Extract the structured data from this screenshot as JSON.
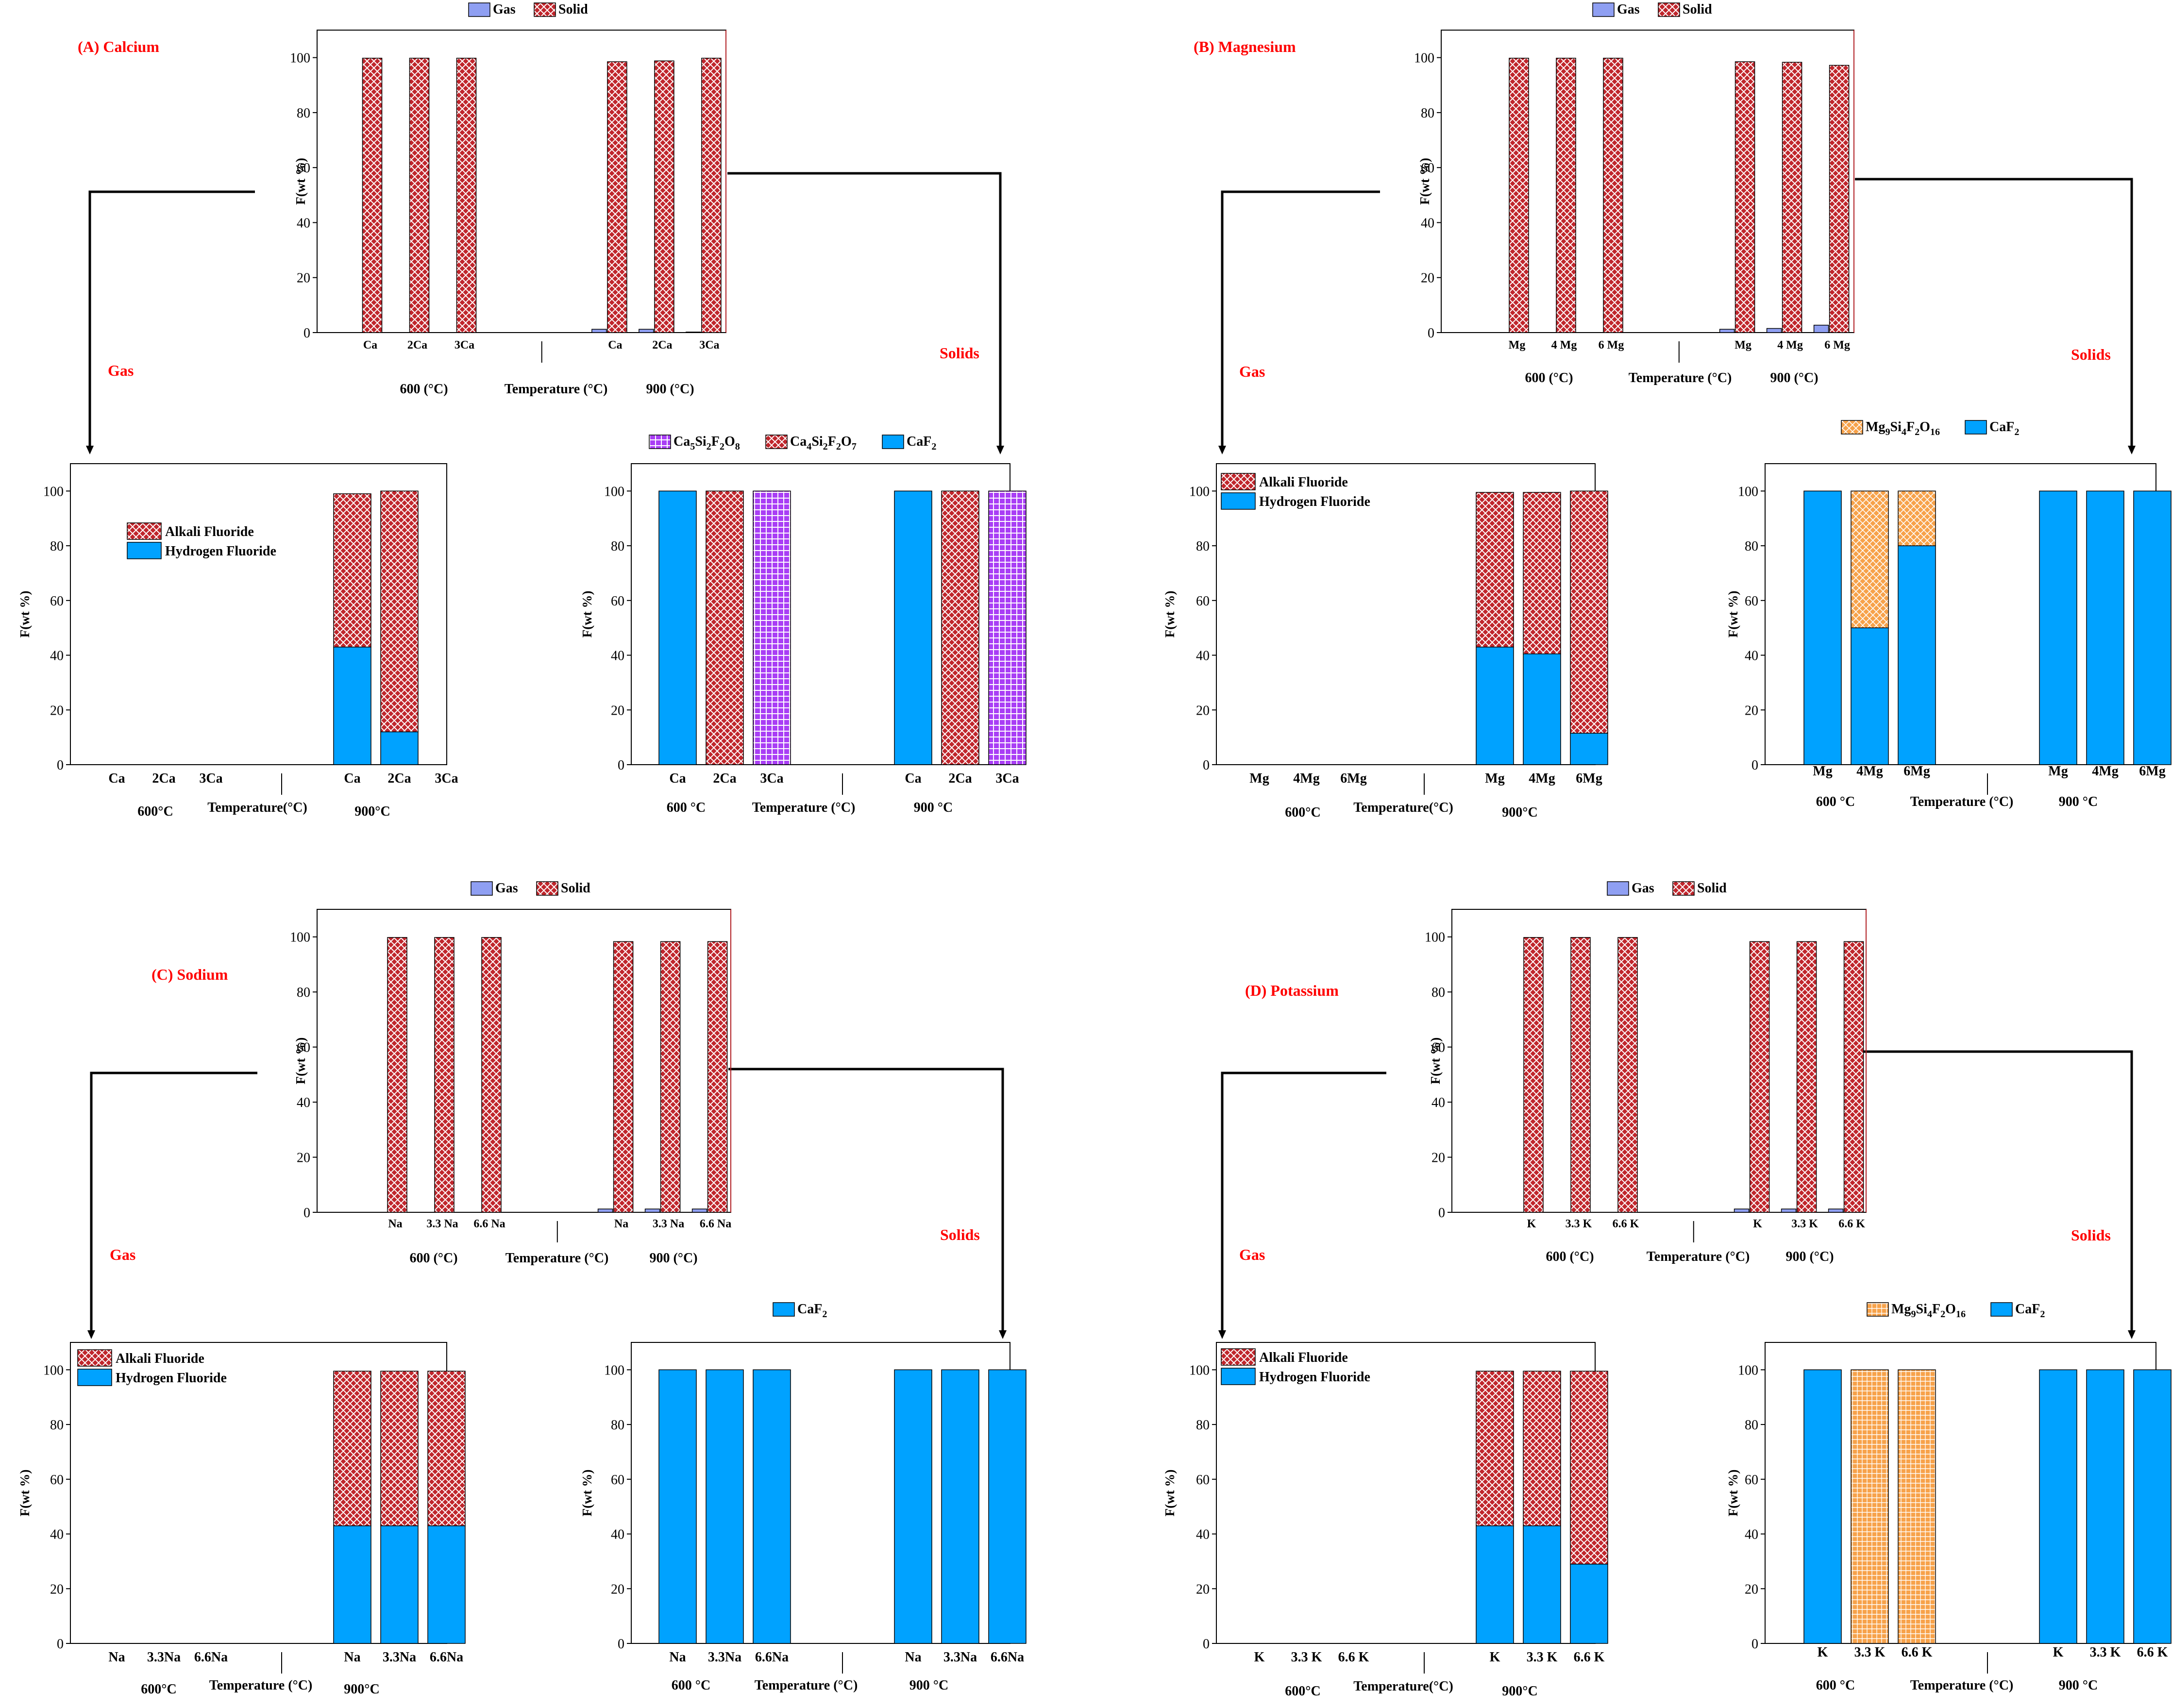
{
  "colors": {
    "gas": "#8f9ff2",
    "solid": "#c0262c",
    "solid_hatch": "#ffffff",
    "caf2": "#00a2ff",
    "purple": "#a93ef5",
    "orange": "#f7a24a",
    "panel_label": "#ff0000",
    "section_label": "#ff0000"
  },
  "panels": [
    {
      "title": "(A) Calcium",
      "gas_label": "Gas",
      "solids_label": "Solids"
    },
    {
      "title": "(B) Magnesium",
      "gas_label": "Gas",
      "solids_label": "Solids"
    },
    {
      "title": "(C) Sodium",
      "gas_label": "Gas",
      "solids_label": "Solids"
    },
    {
      "title": "(D) Potassium",
      "gas_label": "Gas",
      "solids_label": "Solids"
    }
  ],
  "chart_data": [
    {
      "type": "bar",
      "panel": "A",
      "role": "overview",
      "ylabel": "F(wt %)",
      "xlabel": "Temperature (°C)",
      "groups": [
        "600 (°C)",
        "900 (°C)"
      ],
      "categories": [
        "Ca",
        "2Ca",
        "3Ca",
        "Ca",
        "2Ca",
        "3Ca"
      ],
      "ylim": [
        0,
        110
      ],
      "yticks": [
        0,
        20,
        40,
        60,
        80,
        100
      ],
      "legend": [
        "Gas",
        "Solid"
      ],
      "series": [
        {
          "name": "Gas",
          "values": [
            0,
            0,
            0,
            1.2,
            1.2,
            0.2
          ]
        },
        {
          "name": "Solid",
          "values": [
            99.8,
            99.8,
            99.8,
            98.5,
            98.8,
            99.8
          ]
        }
      ]
    },
    {
      "type": "bar",
      "panel": "A",
      "role": "gas",
      "stacked": true,
      "ylabel": "F(wt %)",
      "xlabel": "Temperature(°C)",
      "groups": [
        "600°C",
        "900°C"
      ],
      "categories": [
        "Ca",
        "2Ca",
        "3Ca",
        "Ca",
        "2Ca",
        "3Ca"
      ],
      "ylim": [
        0,
        110
      ],
      "yticks": [
        0,
        20,
        40,
        60,
        80,
        100
      ],
      "legend": [
        "Alkali Fluoride",
        "Hydrogen Fluoride"
      ],
      "series": [
        {
          "name": "Hydrogen Fluoride",
          "values": [
            0,
            0,
            0,
            43,
            12,
            0
          ]
        },
        {
          "name": "Alkali Fluoride",
          "values": [
            0,
            0,
            0,
            56,
            88,
            0
          ]
        }
      ]
    },
    {
      "type": "bar",
      "panel": "A",
      "role": "solids",
      "ylabel": "F(wt %)",
      "xlabel": "Temperature (°C)",
      "groups": [
        "600 °C",
        "900 °C"
      ],
      "categories": [
        "Ca",
        "2Ca",
        "3Ca",
        "Ca",
        "2Ca",
        "3Ca"
      ],
      "ylim": [
        0,
        110
      ],
      "yticks": [
        0,
        20,
        40,
        60,
        80,
        100
      ],
      "legend": [
        "Ca5Si2F2O8",
        "Ca4Si2F2O7",
        "CaF2"
      ],
      "series": [
        {
          "name": "CaF2",
          "values": [
            100,
            0,
            0,
            100,
            0,
            0
          ]
        },
        {
          "name": "Ca4Si2F2O7",
          "values": [
            0,
            100,
            0,
            0,
            100,
            0
          ]
        },
        {
          "name": "Ca5Si2F2O8",
          "values": [
            0,
            0,
            100,
            0,
            0,
            100
          ]
        }
      ]
    },
    {
      "type": "bar",
      "panel": "B",
      "role": "overview",
      "ylabel": "F(wt %)",
      "xlabel": "Temperature (°C)",
      "groups": [
        "600 (°C)",
        "900 (°C)"
      ],
      "categories": [
        "Mg",
        "4 Mg",
        "6 Mg",
        "Mg",
        "4 Mg",
        "6 Mg"
      ],
      "ylim": [
        0,
        110
      ],
      "yticks": [
        0,
        20,
        40,
        60,
        80,
        100
      ],
      "legend": [
        "Gas",
        "Solid"
      ],
      "series": [
        {
          "name": "Gas",
          "values": [
            0,
            0,
            0,
            1.2,
            1.5,
            2.7
          ]
        },
        {
          "name": "Solid",
          "values": [
            99.8,
            99.8,
            99.8,
            98.5,
            98.3,
            97.2
          ]
        }
      ]
    },
    {
      "type": "bar",
      "panel": "B",
      "role": "gas",
      "stacked": true,
      "ylabel": "F(wt %)",
      "xlabel": "Temperature(°C)",
      "groups": [
        "600°C",
        "900°C"
      ],
      "categories": [
        "Mg",
        "4Mg",
        "6Mg",
        "Mg",
        "4Mg",
        "6Mg"
      ],
      "ylim": [
        0,
        110
      ],
      "yticks": [
        0,
        20,
        40,
        60,
        80,
        100
      ],
      "legend": [
        "Alkali Fluoride",
        "Hydrogen Fluoride"
      ],
      "series": [
        {
          "name": "Hydrogen Fluoride",
          "values": [
            0,
            0,
            0,
            43,
            40.5,
            11.5
          ]
        },
        {
          "name": "Alkali Fluoride",
          "values": [
            0,
            0,
            0,
            56.5,
            59,
            88.5
          ]
        }
      ]
    },
    {
      "type": "bar",
      "panel": "B",
      "role": "solids",
      "ylabel": "F(wt %)",
      "xlabel": "Temperature (°C)",
      "groups": [
        "600 °C",
        "900 °C"
      ],
      "categories": [
        "Mg",
        "4Mg",
        "6Mg",
        "Mg",
        "4Mg",
        "6Mg"
      ],
      "ylim": [
        0,
        110
      ],
      "yticks": [
        0,
        20,
        40,
        60,
        80,
        100
      ],
      "legend": [
        "Mg9Si4F2O16",
        "CaF2"
      ],
      "series": [
        {
          "name": "CaF2",
          "values": [
            100,
            50,
            80,
            100,
            100,
            100
          ]
        },
        {
          "name": "Mg9Si4F2O16",
          "values": [
            0,
            50,
            20,
            0,
            0,
            0
          ]
        }
      ]
    },
    {
      "type": "bar",
      "panel": "C",
      "role": "overview",
      "ylabel": "F(wt %)",
      "xlabel": "Temperature (°C)",
      "groups": [
        "600 (°C)",
        "900 (°C)"
      ],
      "categories": [
        "Na",
        "3.3 Na",
        "6.6 Na",
        "Na",
        "3.3 Na",
        "6.6 Na"
      ],
      "ylim": [
        0,
        110
      ],
      "yticks": [
        0,
        20,
        40,
        60,
        80,
        100
      ],
      "legend": [
        "Gas",
        "Solid"
      ],
      "series": [
        {
          "name": "Gas",
          "values": [
            0,
            0,
            0,
            1.2,
            1.2,
            1.2
          ]
        },
        {
          "name": "Solid",
          "values": [
            99.8,
            99.8,
            99.8,
            98.3,
            98.3,
            98.3
          ]
        }
      ]
    },
    {
      "type": "bar",
      "panel": "C",
      "role": "gas",
      "stacked": true,
      "ylabel": "F(wt %)",
      "xlabel": "Temperature (°C)",
      "groups": [
        "600°C",
        "900°C"
      ],
      "categories": [
        "Na",
        "3.3Na",
        "6.6Na",
        "Na",
        "3.3Na",
        "6.6Na"
      ],
      "ylim": [
        0,
        110
      ],
      "yticks": [
        0,
        20,
        40,
        60,
        80,
        100
      ],
      "legend": [
        "Alkali Fluoride",
        "Hydrogen Fluoride"
      ],
      "series": [
        {
          "name": "Hydrogen Fluoride",
          "values": [
            0,
            0,
            0,
            43,
            43,
            43
          ]
        },
        {
          "name": "Alkali Fluoride",
          "values": [
            0,
            0,
            0,
            56.5,
            56.5,
            56.5
          ]
        }
      ]
    },
    {
      "type": "bar",
      "panel": "C",
      "role": "solids",
      "ylabel": "F(wt %)",
      "xlabel": "Temperature (°C)",
      "groups": [
        "600 °C",
        "900 °C"
      ],
      "categories": [
        "Na",
        "3.3Na",
        "6.6Na",
        "Na",
        "3.3Na",
        "6.6Na"
      ],
      "ylim": [
        0,
        110
      ],
      "yticks": [
        0,
        20,
        40,
        60,
        80,
        100
      ],
      "legend": [
        "CaF2"
      ],
      "series": [
        {
          "name": "CaF2",
          "values": [
            100,
            100,
            100,
            100,
            100,
            100
          ]
        }
      ]
    },
    {
      "type": "bar",
      "panel": "D",
      "role": "overview",
      "ylabel": "F(wt %)",
      "xlabel": "Temperature (°C)",
      "groups": [
        "600 (°C)",
        "900 (°C)"
      ],
      "categories": [
        "K",
        "3.3 K",
        "6.6 K",
        "K",
        "3.3 K",
        "6.6 K"
      ],
      "ylim": [
        0,
        110
      ],
      "yticks": [
        0,
        20,
        40,
        60,
        80,
        100
      ],
      "legend": [
        "Gas",
        "Solid"
      ],
      "series": [
        {
          "name": "Gas",
          "values": [
            0,
            0,
            0,
            1.2,
            1.2,
            1.2
          ]
        },
        {
          "name": "Solid",
          "values": [
            99.8,
            99.8,
            99.8,
            98.3,
            98.3,
            98.3
          ]
        }
      ]
    },
    {
      "type": "bar",
      "panel": "D",
      "role": "gas",
      "stacked": true,
      "ylabel": "F(wt %)",
      "xlabel": "Temperature(°C)",
      "groups": [
        "600°C",
        "900°C"
      ],
      "categories": [
        "K",
        "3.3 K",
        "6.6 K",
        "K",
        "3.3 K",
        "6.6 K"
      ],
      "ylim": [
        0,
        110
      ],
      "yticks": [
        0,
        20,
        40,
        60,
        80,
        100
      ],
      "legend": [
        "Alkali Fluoride",
        "Hydrogen Fluoride"
      ],
      "series": [
        {
          "name": "Hydrogen Fluoride",
          "values": [
            0,
            0,
            0,
            43,
            43,
            29
          ]
        },
        {
          "name": "Alkali Fluoride",
          "values": [
            0,
            0,
            0,
            56.5,
            56.5,
            70.5
          ]
        }
      ]
    },
    {
      "type": "bar",
      "panel": "D",
      "role": "solids",
      "ylabel": "F(wt %)",
      "xlabel": "Temperature (°C)",
      "groups": [
        "600 °C",
        "900 °C"
      ],
      "categories": [
        "K",
        "3.3 K",
        "6.6 K",
        "K",
        "3.3 K",
        "6.6 K"
      ],
      "ylim": [
        0,
        110
      ],
      "yticks": [
        0,
        20,
        40,
        60,
        80,
        100
      ],
      "legend": [
        "Mg9Si4F2O16",
        "CaF2"
      ],
      "series": [
        {
          "name": "CaF2",
          "values": [
            100,
            0,
            0,
            100,
            100,
            100
          ]
        },
        {
          "name": "Mg9Si4F2O16",
          "values": [
            0,
            100,
            100,
            0,
            0,
            0
          ]
        }
      ]
    }
  ]
}
